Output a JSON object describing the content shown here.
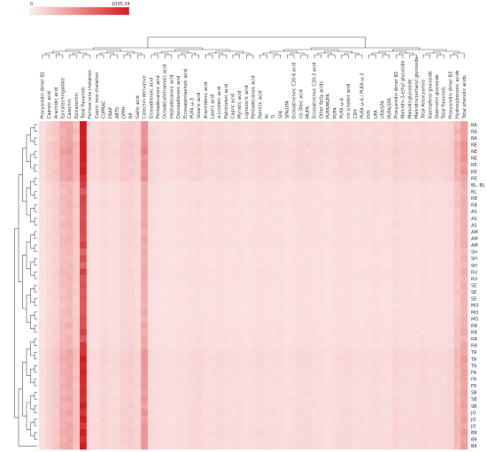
{
  "chart_data": {
    "type": "heatmap",
    "colorbar": {
      "min": 0,
      "max": 1035.34,
      "min_label": "0",
      "max_label": "1035.34",
      "color_low": "#fdf0ef",
      "color_high": "#d7191c"
    },
    "columns": [
      "Procyanidin dimer B1",
      "Caproic acid",
      "Arachidic acid",
      "Epicatechingallate",
      "Catechin",
      "Epicatechin",
      "Total flavanols",
      "Ferrous ions chelation",
      "Cupric ions chelation",
      "CUPRAC",
      "FRAP",
      "ABTS",
      "DPPH",
      "RP",
      "Gallic acid",
      "Catechin derivative",
      "Eicosadienoic acid",
      "Pentadecanoic acid",
      "Octadecatetraenoic acid",
      "Heptadecanoic acid",
      "Docosadienoic acid",
      "Eicosapentaenoic acid",
      "PUFA ω-3",
      "Stearic acid",
      "Arachidonic acid",
      "Lauric acid",
      "α-Linoleic acid",
      "Palmitoleic acid",
      "Capric acid",
      "Myristic acid",
      "Lignoceric acid",
      "Pentadecanoic acid",
      "Palmitic acid",
      "AI",
      "TI",
      "SFA",
      "SFA/UFA",
      "Eicosatrienoic C20:6 acid",
      "cis Oleic acid",
      "MUFA",
      "Eicosatrienoic C20:3 acid",
      "Other fatty acids",
      "PUFA/MUFA",
      "PUFA",
      "PUFA ω-6",
      "cis Linoleic acid",
      "CDX",
      "PUFA ω-6 / PUFA ω-3",
      "H/H",
      "UFA",
      "UFA/SFA",
      "PUFA/SFA",
      "Procyanidin dimer B2",
      "Malvidin-3-ethyl glucoside",
      "Malvidinglucoside",
      "Malvidincoumaryl glucoside",
      "Total Antocyanins",
      "Kaempferol glucoside",
      "Quercetin glucoside",
      "Total flavonols",
      "Procyanidin dimer B3",
      "Hydroxybenzoic acids",
      "Total phenolic acids"
    ],
    "rows": [
      "RA",
      "RA",
      "RA",
      "NE",
      "NE",
      "NE",
      "RE",
      "RE",
      "RE",
      "BL, BL",
      "BL",
      "RB",
      "RB",
      "AS",
      "AS",
      "AS",
      "AM",
      "AM",
      "AM",
      "SH",
      "SH",
      "SH",
      "RU",
      "RU",
      "SE",
      "SE",
      "SE",
      "MO",
      "MO",
      "MO",
      "RB",
      "RR",
      "RR",
      "RR",
      "TR",
      "TR",
      "TR",
      "FR",
      "FR",
      "FR",
      "SB",
      "SB",
      "SB",
      "JO",
      "JO",
      "JO",
      "BR",
      "BR",
      "BR"
    ],
    "column_profile": [
      20,
      45,
      70,
      140,
      170,
      90,
      850,
      30,
      25,
      40,
      30,
      30,
      50,
      55,
      40,
      230,
      30,
      25,
      20,
      20,
      25,
      25,
      30,
      35,
      25,
      25,
      30,
      25,
      25,
      25,
      20,
      25,
      30,
      25,
      25,
      25,
      20,
      25,
      30,
      30,
      25,
      25,
      20,
      25,
      30,
      30,
      25,
      25,
      25,
      30,
      25,
      25,
      40,
      30,
      30,
      30,
      35,
      30,
      30,
      30,
      40,
      110,
      200
    ],
    "row_factor": [
      1.1,
      1.2,
      1.1,
      1.35,
      1.4,
      1.3,
      1.2,
      1.25,
      1.2,
      0.8,
      0.75,
      0.8,
      0.85,
      0.75,
      0.75,
      0.8,
      0.75,
      0.8,
      0.8,
      0.7,
      0.7,
      0.7,
      0.8,
      0.75,
      0.7,
      0.7,
      0.7,
      0.65,
      0.7,
      0.7,
      0.8,
      0.8,
      0.8,
      0.85,
      1.1,
      1.15,
      1.1,
      1.05,
      1.05,
      1.0,
      1.0,
      1.05,
      1.05,
      1.1,
      1.05,
      1.1,
      1.15,
      1.1,
      1.1
    ],
    "grid": false,
    "legend": "top-left"
  }
}
